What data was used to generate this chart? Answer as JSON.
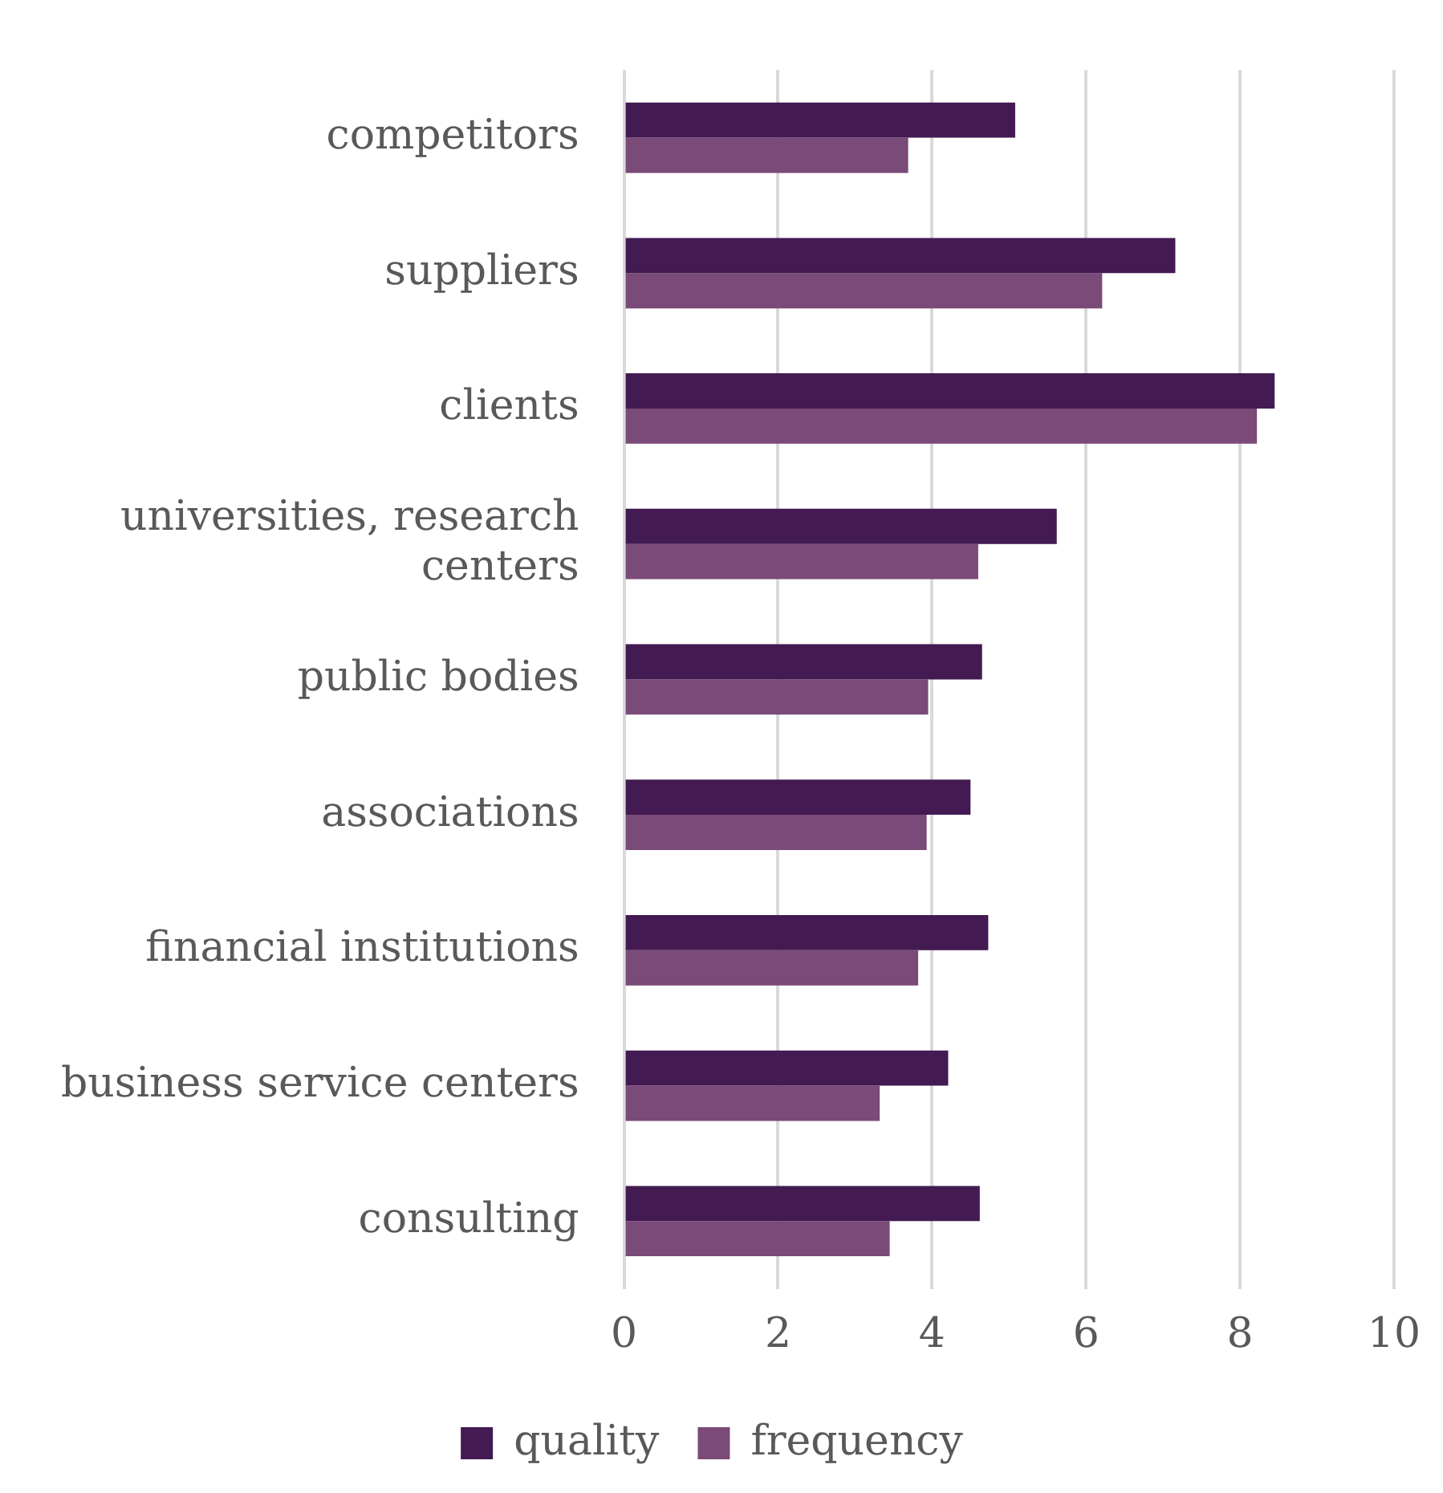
{
  "chart_data": {
    "type": "bar",
    "orientation": "horizontal",
    "categories": [
      "competitors",
      "suppliers",
      "clients",
      "universities, research centers",
      "public bodies",
      "associations",
      "financial institutions",
      "business service centers",
      "consulting"
    ],
    "series": [
      {
        "name": "quality",
        "color": "#431a52",
        "values": [
          5.08,
          7.16,
          8.45,
          5.62,
          4.65,
          4.5,
          4.73,
          4.21,
          4.62
        ]
      },
      {
        "name": "frequency",
        "color": "#7a4a78",
        "values": [
          3.69,
          6.21,
          8.22,
          4.6,
          3.95,
          3.93,
          3.82,
          3.32,
          3.45
        ]
      }
    ],
    "xlim": [
      0,
      10
    ],
    "xticks": [
      0,
      2,
      4,
      6,
      8,
      10
    ],
    "grid": "x",
    "legend": "bottom"
  }
}
